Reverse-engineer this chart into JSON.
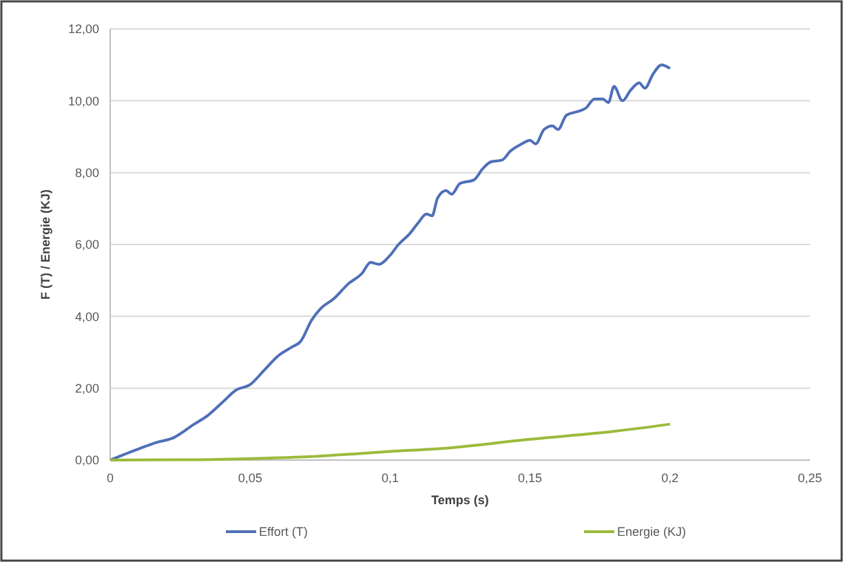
{
  "chart_data": {
    "type": "line",
    "xlabel": "Temps (s)",
    "ylabel": "F (T) / Energie (KJ)",
    "xlim": [
      0,
      0.25
    ],
    "xticks": [
      0,
      {
        "value": 0.05,
        "label": "0,05"
      },
      {
        "value": 0.1,
        "label": "0,1"
      },
      {
        "value": 0.15,
        "label": "0,15"
      },
      {
        "value": 0.2,
        "label": "0,2"
      },
      {
        "value": 0.25,
        "label": "0,25"
      }
    ],
    "ylim": [
      0,
      12
    ],
    "yticks": [
      {
        "value": 0,
        "label": "0,00"
      },
      {
        "value": 2,
        "label": "2,00"
      },
      {
        "value": 4,
        "label": "4,00"
      },
      {
        "value": 6,
        "label": "6,00"
      },
      {
        "value": 8,
        "label": "8,00"
      },
      {
        "value": 10,
        "label": "10,00"
      },
      {
        "value": 12,
        "label": "12,00"
      }
    ],
    "grid": "y",
    "legend": "bottom",
    "marker": "none",
    "line_style": "solid",
    "series": [
      {
        "name": "Effort (T)",
        "color": "#4f6fb8",
        "x": [
          0,
          0.0098,
          0.017,
          0.022,
          0.03,
          0.035,
          0.04,
          0.045,
          0.05,
          0.055,
          0.06,
          0.065,
          0.068,
          0.072,
          0.075,
          0.08,
          0.085,
          0.09,
          0.093,
          0.096,
          0.1,
          0.103,
          0.107,
          0.11,
          0.113,
          0.115,
          0.117,
          0.12,
          0.122,
          0.125,
          0.13,
          0.133,
          0.136,
          0.14,
          0.143,
          0.147,
          0.15,
          0.152,
          0.155,
          0.158,
          0.16,
          0.163,
          0.167,
          0.17,
          0.173,
          0.176,
          0.178,
          0.18,
          0.183,
          0.186,
          0.189,
          0.191,
          0.194,
          0.197,
          0.2
        ],
        "values": [
          0,
          0.3,
          0.5,
          0.6,
          1.0,
          1.25,
          1.6,
          1.95,
          2.1,
          2.5,
          2.9,
          3.15,
          3.3,
          3.9,
          4.2,
          4.5,
          4.9,
          5.2,
          5.5,
          5.45,
          5.7,
          6.0,
          6.3,
          6.6,
          6.85,
          6.8,
          7.3,
          7.5,
          7.4,
          7.7,
          7.8,
          8.1,
          8.3,
          8.35,
          8.6,
          8.8,
          8.9,
          8.8,
          9.2,
          9.3,
          9.2,
          9.6,
          9.7,
          9.8,
          10.05,
          10.05,
          9.95,
          10.4,
          10.0,
          10.3,
          10.5,
          10.35,
          10.75,
          11.0,
          10.9
        ]
      },
      {
        "name": "Energie (KJ)",
        "color": "#9bbb3b",
        "x": [
          0,
          0.03,
          0.05,
          0.07,
          0.1,
          0.12,
          0.15,
          0.18,
          0.2
        ],
        "values": [
          0,
          0.01,
          0.04,
          0.09,
          0.24,
          0.33,
          0.58,
          0.8,
          1.0
        ]
      }
    ]
  }
}
